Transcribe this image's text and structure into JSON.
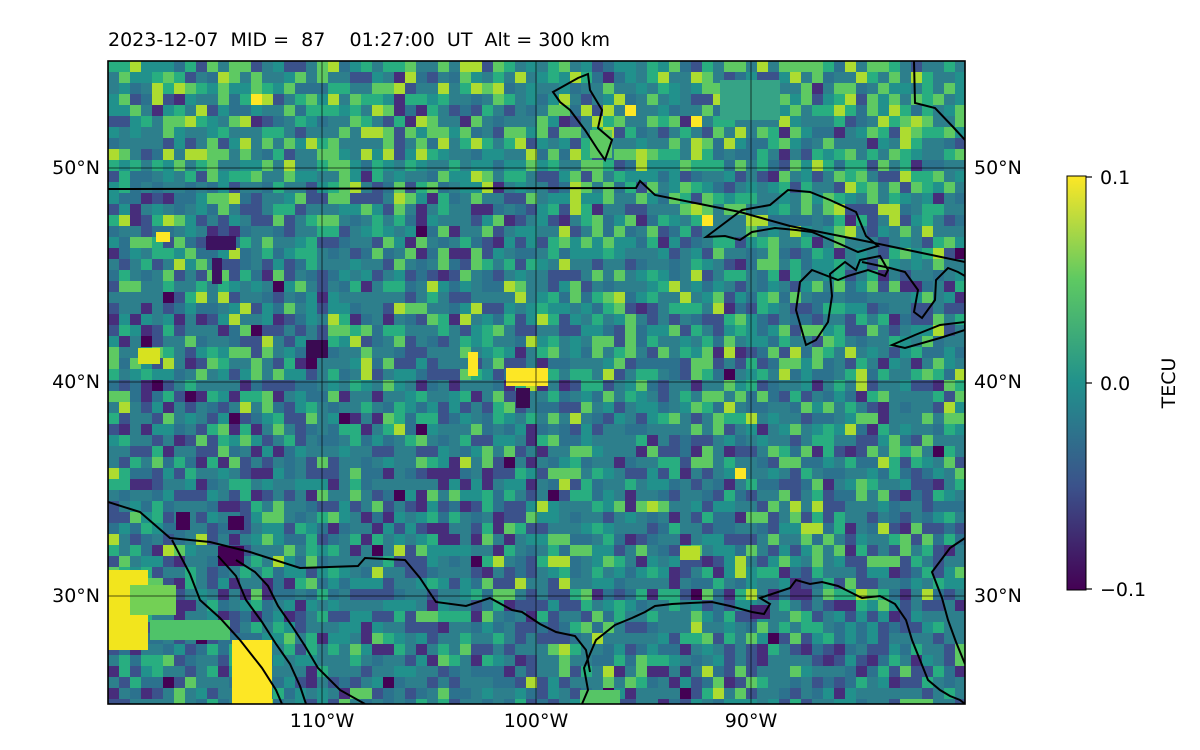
{
  "title": "2023-12-07  MID =  87    01:27:00  UT  Alt = 300 km",
  "map": {
    "lat_labels_left": [
      "50°N",
      "40°N",
      "30°N"
    ],
    "lat_labels_right": [
      "50°N",
      "40°N",
      "30°N"
    ],
    "lon_labels": [
      "110°W",
      "100°W",
      "90°W"
    ]
  },
  "colorbar": {
    "label": "TECU",
    "ticks": [
      "0.1",
      "0.0",
      "−0.1"
    ],
    "colormap": "viridis",
    "colors": [
      "#440154",
      "#3b528b",
      "#21918c",
      "#5ec962",
      "#fde725"
    ]
  }
}
